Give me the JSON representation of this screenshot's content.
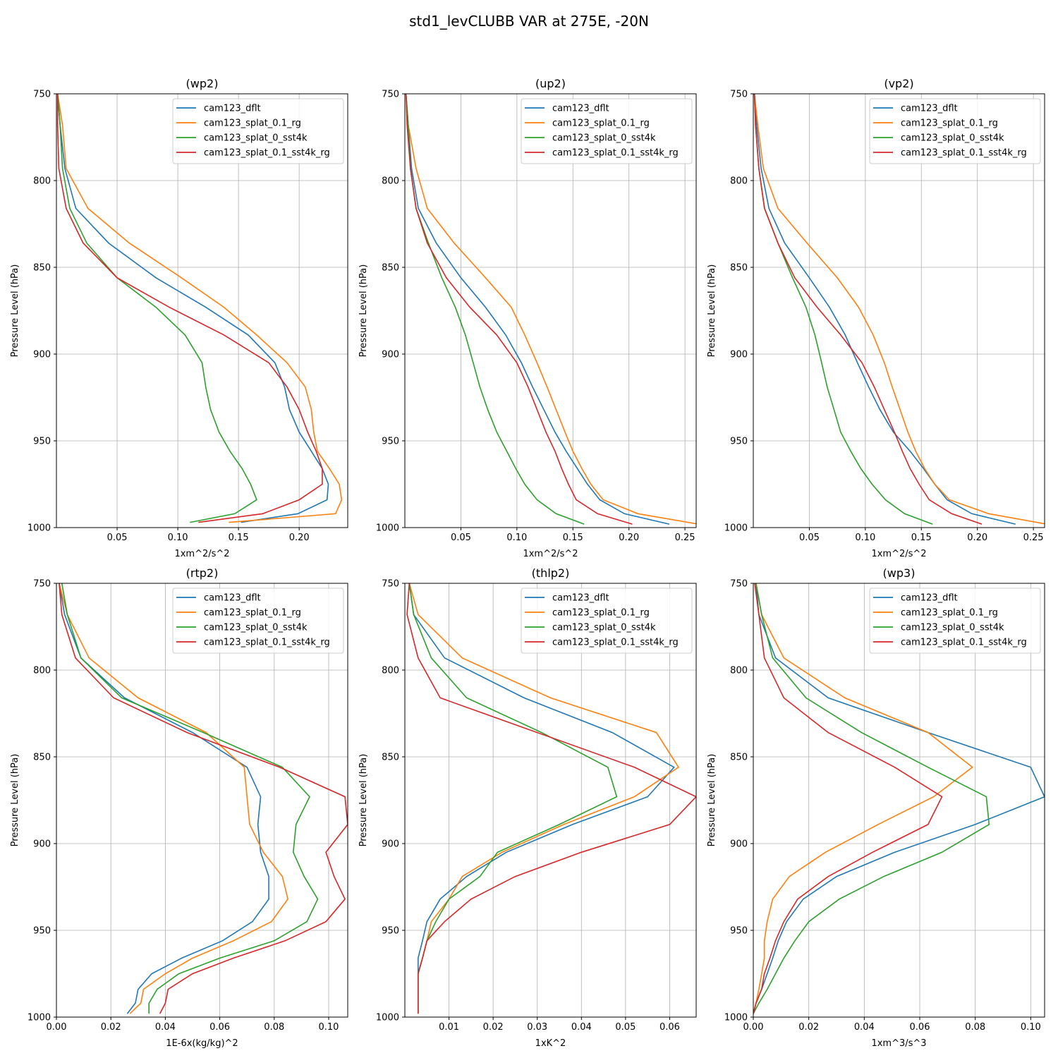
{
  "figure": {
    "title": "std1_levCLUBB VAR at 275E, -20N"
  },
  "series_meta": [
    {
      "name": "cam123_dflt",
      "color": "#1f77b4"
    },
    {
      "name": "cam123_splat_0.1_rg",
      "color": "#ff7f0e"
    },
    {
      "name": "cam123_splat_0_sst4k",
      "color": "#2ca02c"
    },
    {
      "name": "cam123_splat_0.1_sst4k_rg",
      "color": "#d62728"
    }
  ],
  "chart_data": [
    {
      "type": "line",
      "title": "(wp2)",
      "xlabel": "1xm^2/s^2",
      "ylabel": "Pressure Level (hPa)",
      "xlim": [
        0,
        0.24
      ],
      "xticks": [
        0.05,
        0.1,
        0.15,
        0.2
      ],
      "xtick_labels": [
        "0.05",
        "0.10",
        "0.15",
        "0.20"
      ],
      "ylim": [
        750,
        1000
      ],
      "yticks": [
        750,
        800,
        850,
        900,
        950,
        1000
      ],
      "legend": "top-right",
      "grid": true,
      "levels": [
        750,
        768,
        793,
        816,
        836,
        856,
        873,
        889,
        905,
        919,
        932,
        945,
        956,
        966,
        975,
        984,
        992,
        997
      ],
      "series": [
        {
          "name": "cam123_dflt",
          "x": [
            0.001,
            0.003,
            0.007,
            0.016,
            0.043,
            0.082,
            0.123,
            0.158,
            0.18,
            0.188,
            0.192,
            0.2,
            0.21,
            0.219,
            0.224,
            0.223,
            0.199,
            0.152
          ]
        },
        {
          "name": "cam123_splat_0.1_rg",
          "x": [
            0.001,
            0.005,
            0.008,
            0.026,
            0.06,
            0.103,
            0.138,
            0.165,
            0.19,
            0.205,
            0.21,
            0.212,
            0.215,
            0.225,
            0.233,
            0.235,
            0.23,
            0.142
          ]
        },
        {
          "name": "cam123_splat_0_sst4k",
          "x": [
            0.001,
            0.003,
            0.005,
            0.011,
            0.025,
            0.05,
            0.082,
            0.106,
            0.12,
            0.123,
            0.127,
            0.134,
            0.143,
            0.153,
            0.16,
            0.165,
            0.147,
            0.11
          ]
        },
        {
          "name": "cam123_splat_0.1_sst4k_rg",
          "x": [
            0.001,
            0.001,
            0.002,
            0.008,
            0.022,
            0.05,
            0.093,
            0.138,
            0.175,
            0.19,
            0.2,
            0.207,
            0.214,
            0.219,
            0.219,
            0.2,
            0.17,
            0.117
          ]
        }
      ]
    },
    {
      "type": "line",
      "title": "(up2)",
      "xlabel": "1xm^2/s^2",
      "ylabel": "Pressure Level (hPa)",
      "xlim": [
        0,
        0.26
      ],
      "xticks": [
        0.05,
        0.1,
        0.15,
        0.2,
        0.25
      ],
      "xtick_labels": [
        "0.05",
        "0.10",
        "0.15",
        "0.20",
        "0.25"
      ],
      "ylim": [
        750,
        1000
      ],
      "yticks": [
        750,
        800,
        850,
        900,
        950,
        1000
      ],
      "legend": "top-right",
      "grid": true,
      "levels": [
        750,
        768,
        793,
        816,
        836,
        856,
        873,
        889,
        905,
        919,
        932,
        945,
        956,
        966,
        975,
        984,
        992,
        998
      ],
      "series": [
        {
          "name": "cam123_dflt",
          "x": [
            0.001,
            0.003,
            0.006,
            0.012,
            0.028,
            0.05,
            0.072,
            0.09,
            0.104,
            0.114,
            0.124,
            0.134,
            0.144,
            0.154,
            0.163,
            0.174,
            0.196,
            0.236
          ]
        },
        {
          "name": "cam123_splat_0.1_rg",
          "x": [
            0.001,
            0.003,
            0.01,
            0.02,
            0.044,
            0.072,
            0.095,
            0.107,
            0.118,
            0.127,
            0.135,
            0.143,
            0.15,
            0.158,
            0.166,
            0.177,
            0.208,
            0.262
          ]
        },
        {
          "name": "cam123_splat_0_sst4k",
          "x": [
            0.001,
            0.003,
            0.005,
            0.01,
            0.021,
            0.033,
            0.045,
            0.054,
            0.061,
            0.067,
            0.074,
            0.082,
            0.091,
            0.099,
            0.107,
            0.118,
            0.135,
            0.16
          ]
        },
        {
          "name": "cam123_splat_0.1_sst4k_rg",
          "x": [
            0.001,
            0.002,
            0.005,
            0.01,
            0.02,
            0.037,
            0.058,
            0.082,
            0.1,
            0.11,
            0.118,
            0.126,
            0.134,
            0.14,
            0.146,
            0.153,
            0.172,
            0.203
          ]
        }
      ]
    },
    {
      "type": "line",
      "title": "(vp2)",
      "xlabel": "1xm^2/s^2",
      "ylabel": "Pressure Level (hPa)",
      "xlim": [
        0,
        0.26
      ],
      "xticks": [
        0.05,
        0.1,
        0.15,
        0.2,
        0.25
      ],
      "xtick_labels": [
        "0.05",
        "0.10",
        "0.15",
        "0.20",
        "0.25"
      ],
      "ylim": [
        750,
        1000
      ],
      "yticks": [
        750,
        800,
        850,
        900,
        950,
        1000
      ],
      "legend": "top-right",
      "grid": true,
      "levels": [
        750,
        768,
        793,
        816,
        836,
        856,
        873,
        889,
        905,
        919,
        932,
        945,
        956,
        966,
        975,
        984,
        992,
        998
      ],
      "series": [
        {
          "name": "cam123_dflt",
          "x": [
            0.001,
            0.003,
            0.007,
            0.014,
            0.028,
            0.05,
            0.068,
            0.082,
            0.093,
            0.103,
            0.113,
            0.125,
            0.14,
            0.152,
            0.162,
            0.173,
            0.195,
            0.234
          ]
        },
        {
          "name": "cam123_splat_0.1_rg",
          "x": [
            0.001,
            0.004,
            0.009,
            0.022,
            0.048,
            0.075,
            0.094,
            0.107,
            0.117,
            0.124,
            0.131,
            0.138,
            0.145,
            0.153,
            0.162,
            0.175,
            0.21,
            0.262
          ]
        },
        {
          "name": "cam123_splat_0_sst4k",
          "x": [
            0.001,
            0.002,
            0.005,
            0.01,
            0.022,
            0.035,
            0.047,
            0.055,
            0.061,
            0.066,
            0.072,
            0.078,
            0.087,
            0.096,
            0.106,
            0.118,
            0.135,
            0.16
          ]
        },
        {
          "name": "cam123_splat_0.1_sst4k_rg",
          "x": [
            0.001,
            0.002,
            0.005,
            0.01,
            0.022,
            0.037,
            0.057,
            0.078,
            0.097,
            0.108,
            0.117,
            0.126,
            0.133,
            0.14,
            0.148,
            0.157,
            0.177,
            0.204
          ]
        }
      ]
    },
    {
      "type": "line",
      "title": "(rtp2)",
      "xlabel": "1E-6x(kg/kg)^2",
      "ylabel": "Pressure Level (hPa)",
      "xlim": [
        0,
        0.107
      ],
      "xticks": [
        0,
        0.02,
        0.04,
        0.06,
        0.08,
        0.1
      ],
      "xtick_labels": [
        "0.00",
        "0.02",
        "0.04",
        "0.06",
        "0.08",
        "0.10"
      ],
      "ylim": [
        750,
        1000
      ],
      "yticks": [
        750,
        800,
        850,
        900,
        950,
        1000
      ],
      "legend": "top-right",
      "grid": true,
      "levels": [
        750,
        768,
        793,
        816,
        836,
        856,
        873,
        889,
        905,
        919,
        932,
        945,
        956,
        966,
        975,
        984,
        992,
        998
      ],
      "series": [
        {
          "name": "cam123_dflt",
          "x": [
            0.001,
            0.003,
            0.009,
            0.025,
            0.05,
            0.07,
            0.075,
            0.074,
            0.075,
            0.078,
            0.078,
            0.072,
            0.061,
            0.046,
            0.035,
            0.03,
            0.029,
            0.026
          ]
        },
        {
          "name": "cam123_splat_0.1_rg",
          "x": [
            0.001,
            0.004,
            0.012,
            0.03,
            0.055,
            0.069,
            0.07,
            0.071,
            0.076,
            0.083,
            0.085,
            0.079,
            0.065,
            0.05,
            0.04,
            0.032,
            0.031,
            0.027
          ]
        },
        {
          "name": "cam123_splat_0_sst4k",
          "x": [
            0.002,
            0.004,
            0.009,
            0.024,
            0.054,
            0.083,
            0.093,
            0.088,
            0.087,
            0.091,
            0.096,
            0.092,
            0.08,
            0.06,
            0.045,
            0.037,
            0.034,
            0.034
          ]
        },
        {
          "name": "cam123_splat_0.1_sst4k_rg",
          "x": [
            0.001,
            0.002,
            0.007,
            0.021,
            0.048,
            0.082,
            0.106,
            0.107,
            0.099,
            0.102,
            0.106,
            0.099,
            0.084,
            0.065,
            0.05,
            0.041,
            0.04,
            0.038
          ]
        }
      ]
    },
    {
      "type": "line",
      "title": "(thlp2)",
      "xlabel": "1xK^2",
      "ylabel": "Pressure Level (hPa)",
      "xlim": [
        0,
        0.066
      ],
      "xticks": [
        0.01,
        0.02,
        0.03,
        0.04,
        0.05,
        0.06
      ],
      "xtick_labels": [
        "0.01",
        "0.02",
        "0.03",
        "0.04",
        "0.05",
        "0.06"
      ],
      "ylim": [
        750,
        1000
      ],
      "yticks": [
        750,
        800,
        850,
        900,
        950,
        1000
      ],
      "legend": "top-right",
      "grid": true,
      "levels": [
        750,
        768,
        793,
        816,
        836,
        856,
        873,
        889,
        905,
        919,
        932,
        945,
        956,
        966,
        975,
        984,
        992,
        998
      ],
      "series": [
        {
          "name": "cam123_dflt",
          "x": [
            0.001,
            0.002,
            0.009,
            0.027,
            0.047,
            0.061,
            0.055,
            0.038,
            0.023,
            0.014,
            0.008,
            0.005,
            0.004,
            0.003,
            0.003,
            0.003,
            0.003,
            0.003
          ]
        },
        {
          "name": "cam123_splat_0.1_rg",
          "x": [
            0.001,
            0.003,
            0.013,
            0.033,
            0.057,
            0.062,
            0.052,
            0.036,
            0.022,
            0.013,
            0.01,
            0.006,
            0.005,
            0.004,
            0.003,
            0.003,
            0.003,
            0.003
          ]
        },
        {
          "name": "cam123_splat_0_sst4k",
          "x": [
            0.001,
            0.002,
            0.006,
            0.014,
            0.031,
            0.046,
            0.048,
            0.035,
            0.021,
            0.017,
            0.01,
            0.007,
            0.005,
            0.004,
            0.003,
            0.003,
            0.003,
            0.003
          ]
        },
        {
          "name": "cam123_splat_0.1_sst4k_rg",
          "x": [
            0.001,
            0.0005,
            0.003,
            0.008,
            0.03,
            0.052,
            0.066,
            0.06,
            0.04,
            0.025,
            0.015,
            0.009,
            0.005,
            0.004,
            0.003,
            0.003,
            0.003,
            0.003
          ]
        }
      ]
    },
    {
      "type": "line",
      "title": "(wp3)",
      "xlabel": "1xm^3/s^3",
      "ylabel": "Pressure Level (hPa)",
      "xlim": [
        0,
        0.105
      ],
      "xticks": [
        0,
        0.02,
        0.04,
        0.06,
        0.08,
        0.1
      ],
      "xtick_labels": [
        "0.00",
        "0.02",
        "0.04",
        "0.06",
        "0.08",
        "0.10"
      ],
      "ylim": [
        750,
        1000
      ],
      "yticks": [
        750,
        800,
        850,
        900,
        950,
        1000
      ],
      "legend": "top-right",
      "grid": true,
      "levels": [
        750,
        768,
        793,
        816,
        836,
        856,
        873,
        889,
        905,
        919,
        932,
        945,
        956,
        966,
        975,
        984,
        992,
        998
      ],
      "series": [
        {
          "name": "cam123_dflt",
          "x": [
            0.001,
            0.002,
            0.008,
            0.027,
            0.063,
            0.1,
            0.105,
            0.08,
            0.051,
            0.03,
            0.018,
            0.012,
            0.009,
            0.007,
            0.005,
            0.003,
            0.001,
            0.0
          ]
        },
        {
          "name": "cam123_splat_0.1_rg",
          "x": [
            0.001,
            0.003,
            0.011,
            0.033,
            0.063,
            0.079,
            0.065,
            0.045,
            0.026,
            0.013,
            0.007,
            0.005,
            0.004,
            0.004,
            0.003,
            0.002,
            0.001,
            0.0
          ]
        },
        {
          "name": "cam123_splat_0_sst4k",
          "x": [
            0.001,
            0.003,
            0.007,
            0.019,
            0.039,
            0.063,
            0.084,
            0.085,
            0.068,
            0.047,
            0.031,
            0.02,
            0.015,
            0.011,
            0.008,
            0.005,
            0.002,
            0.0
          ]
        },
        {
          "name": "cam123_splat_0.1_sst4k_rg",
          "x": [
            0.0005,
            0.002,
            0.004,
            0.011,
            0.027,
            0.051,
            0.068,
            0.063,
            0.043,
            0.027,
            0.016,
            0.011,
            0.008,
            0.006,
            0.004,
            0.003,
            0.001,
            0.0
          ]
        }
      ]
    }
  ]
}
